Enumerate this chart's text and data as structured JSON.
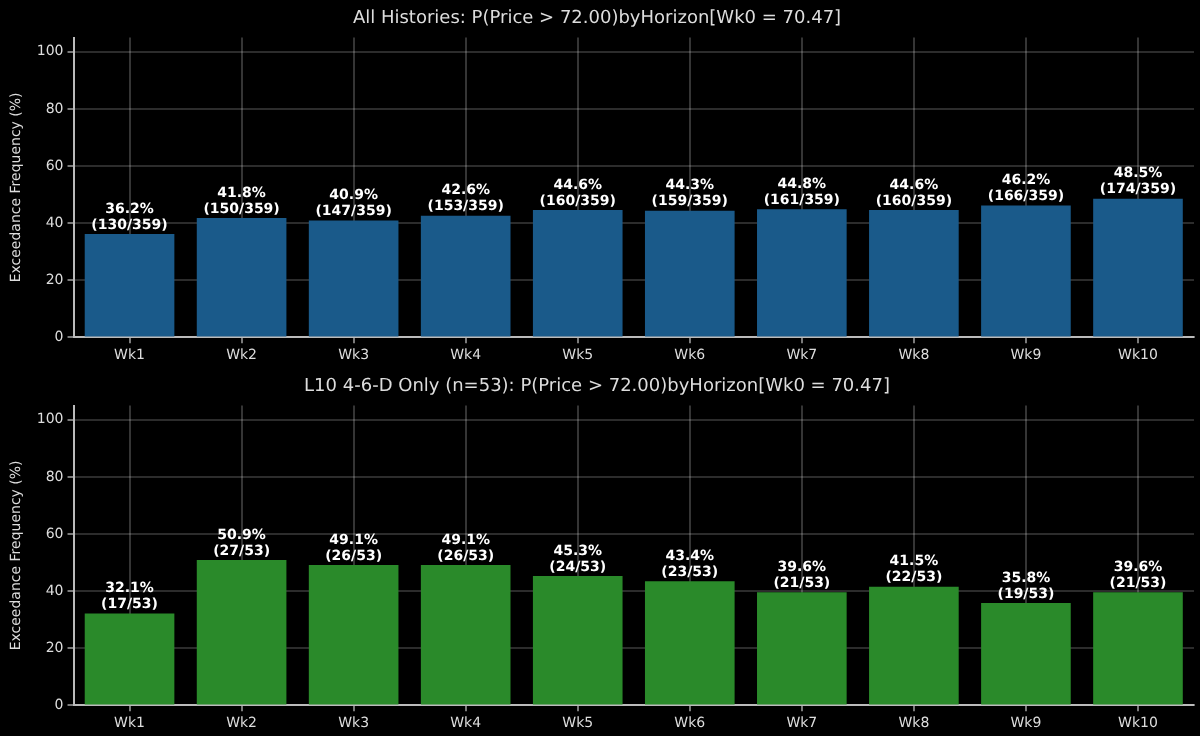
{
  "chart_data": [
    {
      "type": "bar",
      "title": "All Histories: P(Price > 72.00)byHorizon[Wk0 = 70.47]",
      "ylabel": "Exceedance Frequency (%)",
      "categories": [
        "Wk1",
        "Wk2",
        "Wk3",
        "Wk4",
        "Wk5",
        "Wk6",
        "Wk7",
        "Wk8",
        "Wk9",
        "Wk10"
      ],
      "values": [
        36.2,
        41.8,
        40.9,
        42.6,
        44.6,
        44.3,
        44.8,
        44.6,
        46.2,
        48.5
      ],
      "value_labels": [
        "36.2%\n(130/359)",
        "41.8%\n(150/359)",
        "40.9%\n(147/359)",
        "42.6%\n(153/359)",
        "44.6%\n(160/359)",
        "44.3%\n(159/359)",
        "44.8%\n(161/359)",
        "44.6%\n(160/359)",
        "46.2%\n(166/359)",
        "48.5%\n(174/359)"
      ],
      "color": "#1a5a8a",
      "ylim": [
        0,
        105
      ],
      "yticks": [
        0,
        20,
        40,
        60,
        80,
        100
      ],
      "grid": true
    },
    {
      "type": "bar",
      "title": "L10 4-6-D Only (n=53): P(Price > 72.00)byHorizon[Wk0 = 70.47]",
      "ylabel": "Exceedance Frequency (%)",
      "categories": [
        "Wk1",
        "Wk2",
        "Wk3",
        "Wk4",
        "Wk5",
        "Wk6",
        "Wk7",
        "Wk8",
        "Wk9",
        "Wk10"
      ],
      "values": [
        32.1,
        50.9,
        49.1,
        49.1,
        45.3,
        43.4,
        39.6,
        41.5,
        35.8,
        39.6
      ],
      "value_labels": [
        "32.1%\n(17/53)",
        "50.9%\n(27/53)",
        "49.1%\n(26/53)",
        "49.1%\n(26/53)",
        "45.3%\n(24/53)",
        "43.4%\n(23/53)",
        "39.6%\n(21/53)",
        "41.5%\n(22/53)",
        "35.8%\n(19/53)",
        "39.6%\n(21/53)"
      ],
      "color": "#2a8a2a",
      "ylim": [
        0,
        105
      ],
      "yticks": [
        0,
        20,
        40,
        60,
        80,
        100
      ],
      "grid": true
    }
  ]
}
